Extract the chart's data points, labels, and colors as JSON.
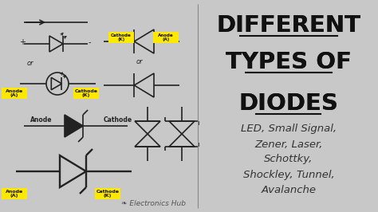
{
  "bg_color": "#c8c8c8",
  "title_lines": [
    "DIFFERENT",
    "TYPES OF",
    "DIODES"
  ],
  "title_color": "#111111",
  "subtitle": "LED, Small Signal,\nZener, Laser,\nSchottky,\nShockley, Tunnel,\nAvalanche",
  "subtitle_color": "#333333",
  "brand": "Electronics Hub",
  "brand_color": "#555555",
  "yellow_color": "#FFE800",
  "label_text_color": "#111111",
  "line_color": "#222222",
  "divider_color": "#888888"
}
